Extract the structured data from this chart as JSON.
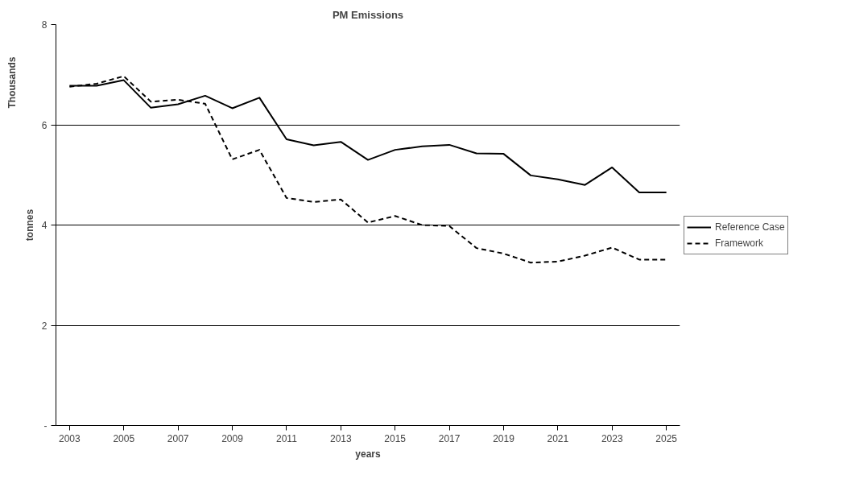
{
  "chart_data": {
    "type": "line",
    "title": "PM Emissions",
    "xlabel": "years",
    "ylabel": "tonnes",
    "annotations": [
      "Thousands"
    ],
    "categories": [
      "2003",
      null,
      "2005",
      null,
      "2007",
      null,
      "2009",
      null,
      "2011",
      null,
      "2013",
      null,
      "2015",
      null,
      "2017",
      null,
      "2019",
      null,
      "2021",
      null,
      "2023",
      null,
      "2025"
    ],
    "series": [
      {
        "name": "Reference Case",
        "color": "#000000",
        "line_style": "solid",
        "values": [
          6.78,
          6.78,
          6.89,
          6.34,
          6.41,
          6.58,
          6.33,
          6.54,
          5.71,
          5.59,
          5.66,
          5.3,
          5.5,
          5.57,
          5.6,
          5.43,
          5.42,
          4.99,
          4.91,
          4.8,
          5.15,
          4.65,
          4.65
        ]
      },
      {
        "name": "Framework",
        "color": "#000000",
        "line_style": "dashed",
        "values": [
          6.76,
          6.82,
          6.97,
          6.46,
          6.5,
          6.42,
          5.31,
          5.5,
          4.54,
          4.46,
          4.51,
          4.05,
          4.18,
          4.0,
          3.98,
          3.54,
          3.43,
          3.25,
          3.27,
          3.39,
          3.55,
          3.31,
          3.31
        ]
      }
    ],
    "ylim": [
      0,
      8
    ],
    "yticks": [
      {
        "value": 0,
        "label": "-"
      },
      2,
      4,
      6,
      8
    ],
    "grid": "y",
    "legend": "right",
    "marker": "none"
  }
}
